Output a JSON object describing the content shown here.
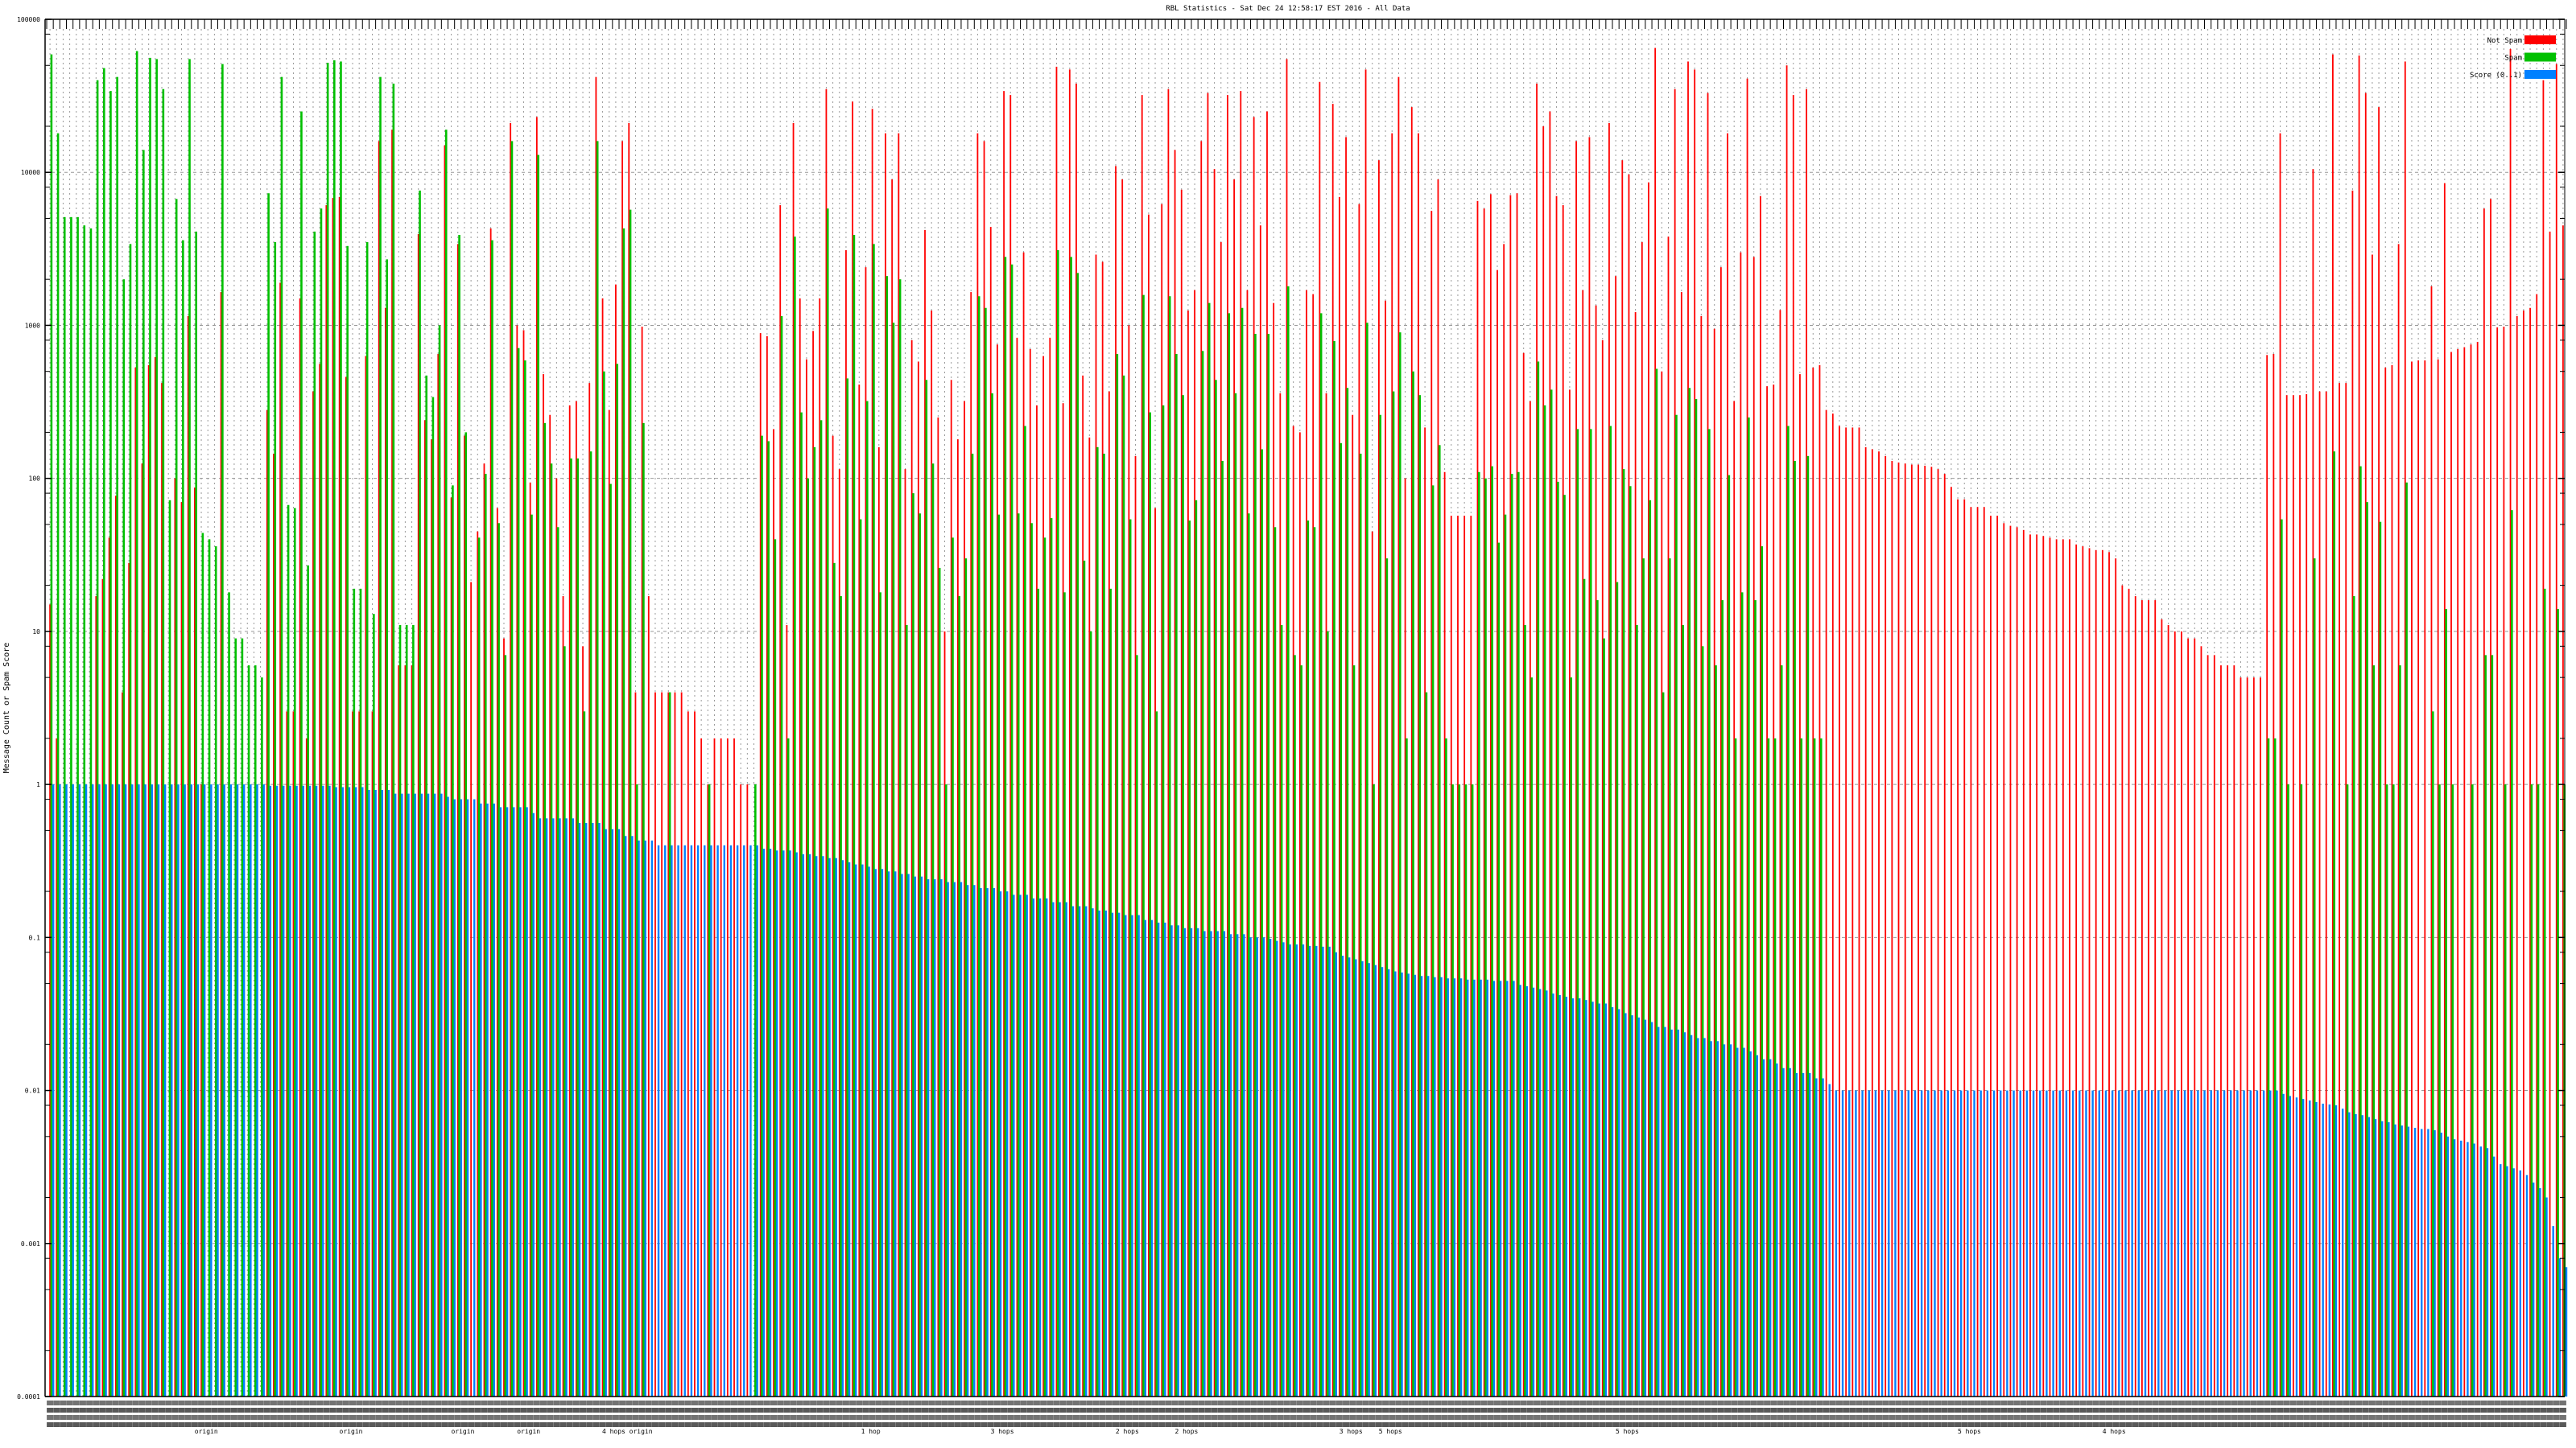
{
  "chart_data": {
    "type": "bar",
    "title": "RBL Statistics - Sat Dec 24 12:58:17 EST 2016 - All Data",
    "xlabel": "",
    "ylabel": "Message Count or Spam Score",
    "yscale": "log",
    "ylim": [
      0.0001,
      100000
    ],
    "y_tick_labels": [
      "100000",
      "10000",
      "1000",
      "100",
      "10",
      "1",
      "0.1",
      "0.01",
      "0.001",
      "0.0001"
    ],
    "y_tick_values": [
      100000,
      10000,
      1000,
      100,
      10,
      1,
      0.1,
      0.01,
      0.001,
      0.0001
    ],
    "grid": true,
    "legend_position": "top-right",
    "category_count": 383,
    "x_group_labels": [
      {
        "category": 24,
        "text": "origin"
      },
      {
        "category": 46,
        "text": "origin"
      },
      {
        "category": 63,
        "text": "origin"
      },
      {
        "category": 73,
        "text": "origin"
      },
      {
        "category": 88,
        "text": "4 hops origin"
      },
      {
        "category": 125,
        "text": "1 hop"
      },
      {
        "category": 145,
        "text": "3 hops"
      },
      {
        "category": 164,
        "text": "2 hops"
      },
      {
        "category": 173,
        "text": "2 hops"
      },
      {
        "category": 198,
        "text": "3 hops"
      },
      {
        "category": 204,
        "text": "5 hops"
      },
      {
        "category": 240,
        "text": "5 hops"
      },
      {
        "category": 292,
        "text": "5 hops"
      },
      {
        "category": 314,
        "text": "4 hops"
      }
    ],
    "series": [
      {
        "name": "Not Spam",
        "color": "#ff0000",
        "values": [
          15,
          2,
          null,
          null,
          null,
          null,
          null,
          17,
          22,
          41,
          77,
          4,
          28,
          530,
          125,
          550,
          620,
          420,
          null,
          100,
          70,
          1150,
          87,
          1,
          null,
          null,
          1650,
          null,
          null,
          null,
          null,
          null,
          null,
          280,
          145,
          1900,
          3,
          3,
          1500,
          2,
          370,
          560,
          6100,
          6800,
          6900,
          460,
          3,
          3,
          630,
          3,
          16000,
          1300,
          19000,
          6,
          6,
          6,
          3950,
          240,
          180,
          650,
          15000,
          75,
          3400,
          190,
          21,
          45,
          125,
          4300,
          64,
          9,
          21000,
          1000,
          930,
          94,
          23000,
          480,
          260,
          100,
          17,
          300,
          320,
          8,
          420,
          42000,
          1500,
          280,
          1850,
          16000,
          21000,
          4,
          980,
          17,
          4,
          4,
          4,
          4,
          4,
          3,
          3,
          2,
          1,
          2,
          2,
          2,
          2,
          1,
          1,
          null,
          890,
          850,
          210,
          6100,
          11,
          21000,
          1500,
          600,
          920,
          1500,
          35000,
          190,
          115,
          3100,
          29000,
          410,
          2400,
          26000,
          160,
          18000,
          9000,
          18000,
          115,
          800,
          580,
          4200,
          1250,
          250,
          10,
          440,
          180,
          320,
          1650,
          18000,
          16000,
          4400,
          750,
          34000,
          32000,
          830,
          3000,
          700,
          300,
          630,
          830,
          49000,
          310,
          47000,
          38000,
          470,
          185,
          2900,
          2600,
          370,
          11000,
          9000,
          1000,
          140,
          32000,
          5300,
          64,
          6200,
          35000,
          14000,
          7700,
          1250,
          1700,
          16000,
          33000,
          10500,
          3500,
          32000,
          9000,
          34000,
          1700,
          23000,
          4500,
          25000,
          1400,
          360,
          55000,
          220,
          200,
          1700,
          1600,
          39000,
          360,
          28000,
          6900,
          17000,
          260,
          6200,
          47000,
          45,
          12000,
          1450,
          18000,
          42000,
          100,
          26700,
          18000,
          215,
          5600,
          9000,
          110,
          57,
          57,
          57,
          57,
          6500,
          5800,
          7200,
          2300,
          3400,
          7100,
          7300,
          660,
          320,
          38000,
          20000,
          25000,
          7000,
          6100,
          380,
          16000,
          1700,
          17000,
          1350,
          800,
          21000,
          2100,
          12000,
          9700,
          1220,
          3500,
          8600,
          65000,
          500,
          3800,
          35000,
          1650,
          53000,
          47000,
          1150,
          33000,
          950,
          2400,
          18000,
          320,
          3000,
          41000,
          2800,
          7000,
          400,
          410,
          1260,
          50000,
          32000,
          480,
          35000,
          530,
          550,
          280,
          265,
          220,
          215,
          215,
          215,
          160,
          155,
          150,
          140,
          130,
          127,
          125,
          123,
          123,
          121,
          119,
          115,
          107,
          88,
          73,
          73,
          65,
          65,
          65,
          57,
          57,
          51,
          49,
          48,
          46,
          43,
          43,
          42,
          41,
          40,
          40,
          40,
          37,
          36,
          35,
          34,
          34,
          33,
          30,
          20,
          19,
          17,
          16,
          16,
          16,
          12,
          11,
          10,
          10,
          9,
          9,
          8,
          7,
          7,
          6,
          6,
          6,
          5,
          5,
          5,
          5,
          640,
          650,
          18000,
          350,
          350,
          350,
          355,
          10500,
          370,
          370,
          59000,
          420,
          420,
          7600,
          58000,
          33000,
          2900,
          26700,
          530,
          550,
          3400,
          53000,
          580,
          590,
          590,
          1800,
          600,
          8500,
          670,
          700,
          720,
          750,
          780,
          5800,
          6700,
          970,
          980,
          64000,
          1150,
          1250,
          1300,
          1600,
          40000,
          4100,
          51000,
          4500
        ]
      },
      {
        "name": "Spam",
        "color": "#00c000",
        "values": [
          59000,
          18000,
          5100,
          5100,
          5100,
          4500,
          4300,
          40000,
          48000,
          34000,
          42000,
          2000,
          3400,
          62000,
          14000,
          56000,
          55000,
          35000,
          72,
          6700,
          3600,
          55000,
          4100,
          44,
          40,
          36,
          51000,
          18,
          9,
          9,
          6,
          6,
          5,
          7300,
          3500,
          42000,
          67,
          64,
          25000,
          27,
          4100,
          5800,
          52000,
          54000,
          53000,
          3300,
          19,
          19,
          3500,
          13,
          42000,
          2700,
          38000,
          11,
          11,
          11,
          7600,
          470,
          340,
          1000,
          19000,
          90,
          3900,
          200,
          null,
          41,
          107,
          3600,
          51,
          7,
          16000,
          710,
          590,
          58,
          13000,
          230,
          125,
          48,
          8,
          135,
          135,
          3,
          150,
          16000,
          500,
          92,
          560,
          4300,
          5700,
          1,
          230,
          null,
          null,
          null,
          4,
          null,
          null,
          null,
          null,
          null,
          1,
          null,
          null,
          null,
          null,
          null,
          null,
          1,
          190,
          175,
          40,
          1150,
          2,
          3800,
          270,
          100,
          160,
          240,
          5800,
          28,
          17,
          450,
          3900,
          54,
          320,
          3400,
          18,
          2100,
          1040,
          2000,
          11,
          80,
          59,
          440,
          125,
          26,
          1,
          41,
          17,
          30,
          145,
          1550,
          1300,
          360,
          58,
          2800,
          2500,
          59,
          220,
          51,
          19,
          41,
          55,
          3100,
          18,
          2800,
          2200,
          29,
          10,
          160,
          145,
          19,
          650,
          470,
          54,
          7,
          1580,
          270,
          3,
          300,
          1550,
          650,
          350,
          53,
          72,
          680,
          1400,
          440,
          130,
          1200,
          360,
          1300,
          59,
          880,
          155,
          880,
          48,
          11,
          1800,
          7,
          6,
          53,
          48,
          1200,
          10,
          790,
          170,
          390,
          6,
          145,
          1040,
          1,
          260,
          30,
          370,
          900,
          2,
          500,
          350,
          4,
          90,
          165,
          2,
          1,
          1,
          1,
          1,
          110,
          100,
          120,
          38,
          58,
          107,
          110,
          11,
          5,
          580,
          300,
          380,
          95,
          78,
          5,
          210,
          22,
          210,
          16,
          9,
          220,
          21,
          115,
          89,
          11,
          30,
          72,
          520,
          4,
          30,
          260,
          11,
          390,
          330,
          8,
          210,
          6,
          16,
          105,
          2,
          18,
          250,
          16,
          36,
          2,
          2,
          6,
          220,
          130,
          2,
          140,
          2,
          2,
          null,
          null,
          null,
          null,
          null,
          null,
          null,
          null,
          null,
          null,
          null,
          null,
          null,
          null,
          null,
          null,
          null,
          null,
          null,
          null,
          null,
          null,
          null,
          null,
          null,
          null,
          null,
          null,
          null,
          null,
          null,
          null,
          null,
          null,
          null,
          null,
          null,
          null,
          null,
          null,
          null,
          null,
          null,
          null,
          null,
          null,
          null,
          null,
          null,
          null,
          null,
          null,
          null,
          null,
          null,
          null,
          null,
          null,
          null,
          null,
          null,
          null,
          null,
          null,
          null,
          null,
          null,
          2,
          2,
          54,
          1,
          null,
          1,
          null,
          30,
          null,
          null,
          150,
          null,
          1,
          17,
          120,
          70,
          6,
          52,
          1,
          1,
          6,
          94,
          null,
          null,
          null,
          3,
          1,
          14,
          1,
          null,
          null,
          1,
          null,
          7,
          7,
          null,
          1,
          62,
          null,
          null,
          1,
          1,
          19,
          null,
          14,
          1
        ]
      },
      {
        "name": "Score (0..1)",
        "color": "#0080ff",
        "values": [
          1,
          1,
          1,
          1,
          1,
          1,
          1,
          1,
          1,
          1,
          1,
          1,
          1,
          1,
          1,
          1,
          1,
          1,
          1,
          1,
          1,
          1,
          1,
          1,
          1,
          1,
          1,
          1,
          1,
          1,
          1,
          1,
          1,
          0.98,
          0.98,
          0.98,
          0.98,
          0.98,
          0.98,
          0.98,
          0.98,
          0.98,
          0.98,
          0.96,
          0.96,
          0.96,
          0.96,
          0.96,
          0.92,
          0.92,
          0.92,
          0.92,
          0.87,
          0.87,
          0.87,
          0.87,
          0.87,
          0.87,
          0.87,
          0.87,
          0.83,
          0.8,
          0.8,
          0.8,
          0.8,
          0.75,
          0.75,
          0.75,
          0.71,
          0.71,
          0.71,
          0.71,
          0.71,
          0.65,
          0.6,
          0.6,
          0.6,
          0.6,
          0.6,
          0.6,
          0.56,
          0.56,
          0.56,
          0.56,
          0.51,
          0.51,
          0.51,
          0.46,
          0.46,
          0.43,
          0.43,
          0.43,
          0.4,
          0.4,
          0.4,
          0.4,
          0.4,
          0.4,
          0.4,
          0.4,
          0.4,
          0.4,
          0.4,
          0.4,
          0.4,
          0.4,
          0.4,
          0.4,
          0.38,
          0.38,
          0.37,
          0.37,
          0.37,
          0.36,
          0.35,
          0.35,
          0.34,
          0.34,
          0.33,
          0.33,
          0.32,
          0.31,
          0.3,
          0.3,
          0.29,
          0.28,
          0.28,
          0.27,
          0.27,
          0.26,
          0.26,
          0.25,
          0.25,
          0.24,
          0.24,
          0.24,
          0.23,
          0.23,
          0.23,
          0.22,
          0.22,
          0.21,
          0.21,
          0.21,
          0.2,
          0.2,
          0.19,
          0.19,
          0.19,
          0.18,
          0.18,
          0.18,
          0.17,
          0.17,
          0.17,
          0.16,
          0.16,
          0.16,
          0.155,
          0.15,
          0.15,
          0.145,
          0.145,
          0.14,
          0.14,
          0.14,
          0.13,
          0.13,
          0.125,
          0.125,
          0.12,
          0.12,
          0.115,
          0.115,
          0.115,
          0.11,
          0.11,
          0.11,
          0.11,
          0.105,
          0.105,
          0.105,
          0.1,
          0.1,
          0.1,
          0.098,
          0.095,
          0.093,
          0.09,
          0.09,
          0.09,
          0.088,
          0.088,
          0.087,
          0.087,
          0.08,
          0.076,
          0.074,
          0.072,
          0.07,
          0.068,
          0.066,
          0.064,
          0.062,
          0.06,
          0.059,
          0.058,
          0.057,
          0.056,
          0.056,
          0.055,
          0.055,
          0.054,
          0.054,
          0.054,
          0.053,
          0.053,
          0.053,
          0.053,
          0.052,
          0.052,
          0.052,
          0.052,
          0.049,
          0.048,
          0.047,
          0.046,
          0.045,
          0.043,
          0.042,
          0.041,
          0.04,
          0.04,
          0.039,
          0.038,
          0.037,
          0.037,
          0.035,
          0.034,
          0.032,
          0.031,
          0.03,
          0.029,
          0.028,
          0.026,
          0.026,
          0.025,
          0.025,
          0.024,
          0.023,
          0.022,
          0.022,
          0.021,
          0.021,
          0.02,
          0.02,
          0.019,
          0.019,
          0.018,
          0.017,
          0.016,
          0.016,
          0.015,
          0.014,
          0.014,
          0.013,
          0.013,
          0.013,
          0.012,
          0.012,
          0.011,
          0.01,
          0.01,
          0.01,
          0.01,
          0.01,
          0.01,
          0.01,
          0.01,
          0.01,
          0.01,
          0.01,
          0.01,
          0.01,
          0.01,
          0.01,
          0.01,
          0.01,
          0.01,
          0.01,
          0.01,
          0.01,
          0.01,
          0.01,
          0.01,
          0.01,
          0.01,
          0.01,
          0.01,
          0.01,
          0.01,
          0.01,
          0.01,
          0.01,
          0.01,
          0.01,
          0.01,
          0.01,
          0.01,
          0.01,
          0.01,
          0.01,
          0.01,
          0.01,
          0.01,
          0.01,
          0.01,
          0.01,
          0.01,
          0.01,
          0.01,
          0.01,
          0.01,
          0.01,
          0.01,
          0.01,
          0.01,
          0.01,
          0.01,
          0.01,
          0.01,
          0.01,
          0.01,
          0.01,
          0.01,
          0.01,
          0.01,
          0.01,
          0.01,
          0.0095,
          0.0092,
          0.009,
          0.0088,
          0.0086,
          0.0084,
          0.0082,
          0.0081,
          0.008,
          0.0076,
          0.0072,
          0.007,
          0.0069,
          0.0067,
          0.0065,
          0.0063,
          0.0062,
          0.006,
          0.0059,
          0.0058,
          0.0057,
          0.0056,
          0.0056,
          0.0055,
          0.0053,
          0.005,
          0.0048,
          0.0047,
          0.0046,
          0.0045,
          0.0043,
          0.0042,
          0.0037,
          0.0033,
          0.0032,
          0.0031,
          0.003,
          0.0028,
          0.0025,
          0.0023,
          0.002,
          0.0013,
          0.0008,
          0.0007
        ]
      }
    ]
  }
}
